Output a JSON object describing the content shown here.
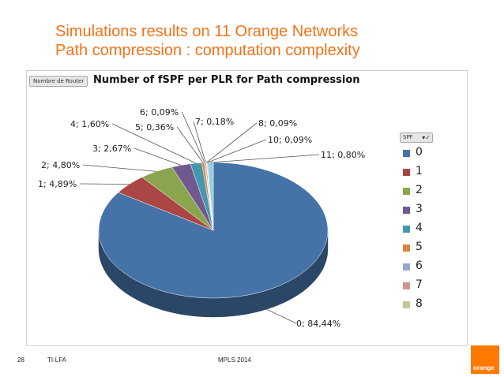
{
  "slide": {
    "title_line1": "Simulations results on 11 Orange Networks",
    "title_line2": "Path compression : computation complexity",
    "page_number": "28",
    "footer_left": "TI-LFA",
    "footer_center": "MPLS 2014",
    "logo_text": "orange",
    "accent_color": "#f47216"
  },
  "filter_chip": "Nombre de Router",
  "legend_chip": {
    "label": "SPF",
    "icon": "filter-dropdown-icon"
  },
  "chart_data": {
    "type": "pie",
    "title": "Number of fSPF per PLR  for Path compression",
    "legend_position": "right",
    "categories": [
      "0",
      "1",
      "2",
      "3",
      "4",
      "5",
      "6",
      "7",
      "8",
      "10",
      "11"
    ],
    "values": [
      84.44,
      4.89,
      4.8,
      2.67,
      1.6,
      0.36,
      0.09,
      0.18,
      0.09,
      0.09,
      0.8
    ],
    "data_labels": [
      "0; 84,44%",
      "1; 4,89%",
      "2; 4,80%",
      "3; 2,67%",
      "4; 1,60%",
      "5; 0,36%",
      "6; 0,09%",
      "7; 0,18%",
      "8; 0,09%",
      "10; 0,09%",
      "11; 0,80%"
    ],
    "legend": [
      "0",
      "1",
      "2",
      "3",
      "4",
      "5",
      "6",
      "7",
      "8"
    ],
    "colors": [
      "#4572a7",
      "#aa4643",
      "#89a54e",
      "#71588f",
      "#4198af",
      "#db843d",
      "#93a9cf",
      "#d19392",
      "#b9cd96",
      "#a99bbd",
      "#92cddc"
    ]
  }
}
